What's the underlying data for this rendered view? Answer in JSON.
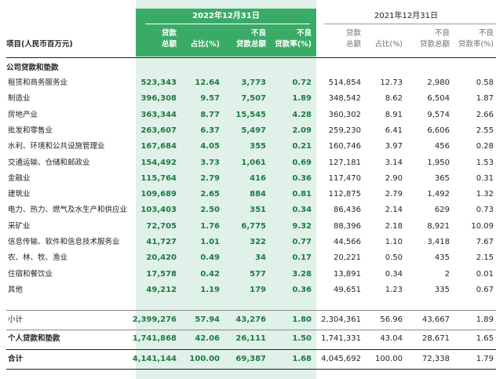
{
  "header": {
    "period_current": "2022年12月31日",
    "period_prior": "2021年12月31日",
    "item_label": "项目(人民币百万元)",
    "current_columns": [
      {
        "l1": "贷款",
        "l2": "总额"
      },
      {
        "l1": "",
        "l2": "占比(%)"
      },
      {
        "l1": "不良",
        "l2": "贷款总额"
      },
      {
        "l1": "不良",
        "l2": "贷款率(%)"
      }
    ],
    "prior_columns": [
      {
        "l1": "贷款",
        "l2": "总额"
      },
      {
        "l1": "",
        "l2": "占比(%)"
      },
      {
        "l1": "不良",
        "l2": "贷款总额"
      },
      {
        "l1": "不良",
        "l2": "贷款率(%)"
      }
    ]
  },
  "section_title": "公司贷款和垫款",
  "rows": [
    {
      "label": "租赁和商务服务业",
      "cur": [
        "523,343",
        "12.64",
        "3,773",
        "0.72"
      ],
      "prev": [
        "514,854",
        "12.73",
        "2,980",
        "0.58"
      ]
    },
    {
      "label": "制造业",
      "cur": [
        "396,308",
        "9.57",
        "7,507",
        "1.89"
      ],
      "prev": [
        "348,542",
        "8.62",
        "6,504",
        "1.87"
      ]
    },
    {
      "label": "房地产业",
      "cur": [
        "363,344",
        "8.77",
        "15,545",
        "4.28"
      ],
      "prev": [
        "360,302",
        "8.91",
        "9,574",
        "2.66"
      ]
    },
    {
      "label": "批发和零售业",
      "cur": [
        "263,607",
        "6.37",
        "5,497",
        "2.09"
      ],
      "prev": [
        "259,230",
        "6.41",
        "6,606",
        "2.55"
      ]
    },
    {
      "label": "水利、环境和公共设施管理业",
      "cur": [
        "167,684",
        "4.05",
        "355",
        "0.21"
      ],
      "prev": [
        "160,746",
        "3.97",
        "456",
        "0.28"
      ]
    },
    {
      "label": "交通运输、仓储和邮政业",
      "cur": [
        "154,492",
        "3.73",
        "1,061",
        "0.69"
      ],
      "prev": [
        "127,181",
        "3.14",
        "1,950",
        "1.53"
      ]
    },
    {
      "label": "金融业",
      "cur": [
        "115,764",
        "2.79",
        "416",
        "0.36"
      ],
      "prev": [
        "117,470",
        "2.90",
        "365",
        "0.31"
      ]
    },
    {
      "label": "建筑业",
      "cur": [
        "109,689",
        "2.65",
        "884",
        "0.81"
      ],
      "prev": [
        "112,875",
        "2.79",
        "1,492",
        "1.32"
      ]
    },
    {
      "label": "电力、热力、燃气及水生产和供应业",
      "cur": [
        "103,403",
        "2.50",
        "351",
        "0.34"
      ],
      "prev": [
        "86,436",
        "2.14",
        "629",
        "0.73"
      ]
    },
    {
      "label": "采矿业",
      "cur": [
        "72,705",
        "1.76",
        "6,775",
        "9.32"
      ],
      "prev": [
        "88,396",
        "2.18",
        "8,921",
        "10.09"
      ]
    },
    {
      "label": "信息传输、软件和信息技术服务业",
      "cur": [
        "41,727",
        "1.01",
        "322",
        "0.77"
      ],
      "prev": [
        "44,566",
        "1.10",
        "3,418",
        "7.67"
      ]
    },
    {
      "label": "农、林、牧、渔业",
      "cur": [
        "20,420",
        "0.49",
        "34",
        "0.17"
      ],
      "prev": [
        "20,221",
        "0.50",
        "435",
        "2.15"
      ]
    },
    {
      "label": "住宿和餐饮业",
      "cur": [
        "17,578",
        "0.42",
        "577",
        "3.28"
      ],
      "prev": [
        "13,891",
        "0.34",
        "2",
        "0.01"
      ]
    },
    {
      "label": "其他",
      "cur": [
        "49,212",
        "1.19",
        "179",
        "0.36"
      ],
      "prev": [
        "49,651",
        "1.23",
        "335",
        "0.67"
      ]
    }
  ],
  "subtotal": {
    "label": "小计",
    "cur": [
      "2,399,276",
      "57.94",
      "43,276",
      "1.80"
    ],
    "prev": [
      "2,304,361",
      "56.96",
      "43,667",
      "1.89"
    ]
  },
  "personal": {
    "label": "个人贷款和垫款",
    "cur": [
      "1,741,868",
      "42.06",
      "26,111",
      "1.50"
    ],
    "prev": [
      "1,741,331",
      "43.04",
      "28,671",
      "1.65"
    ]
  },
  "total": {
    "label": "合计",
    "cur": [
      "4,141,144",
      "100.00",
      "69,387",
      "1.68"
    ],
    "prev": [
      "4,045,692",
      "100.00",
      "72,338",
      "1.79"
    ]
  },
  "colors": {
    "highlight_bg": "#dff1e8",
    "highlight_header": "#3aab67",
    "highlight_text": "#1f7a45"
  }
}
